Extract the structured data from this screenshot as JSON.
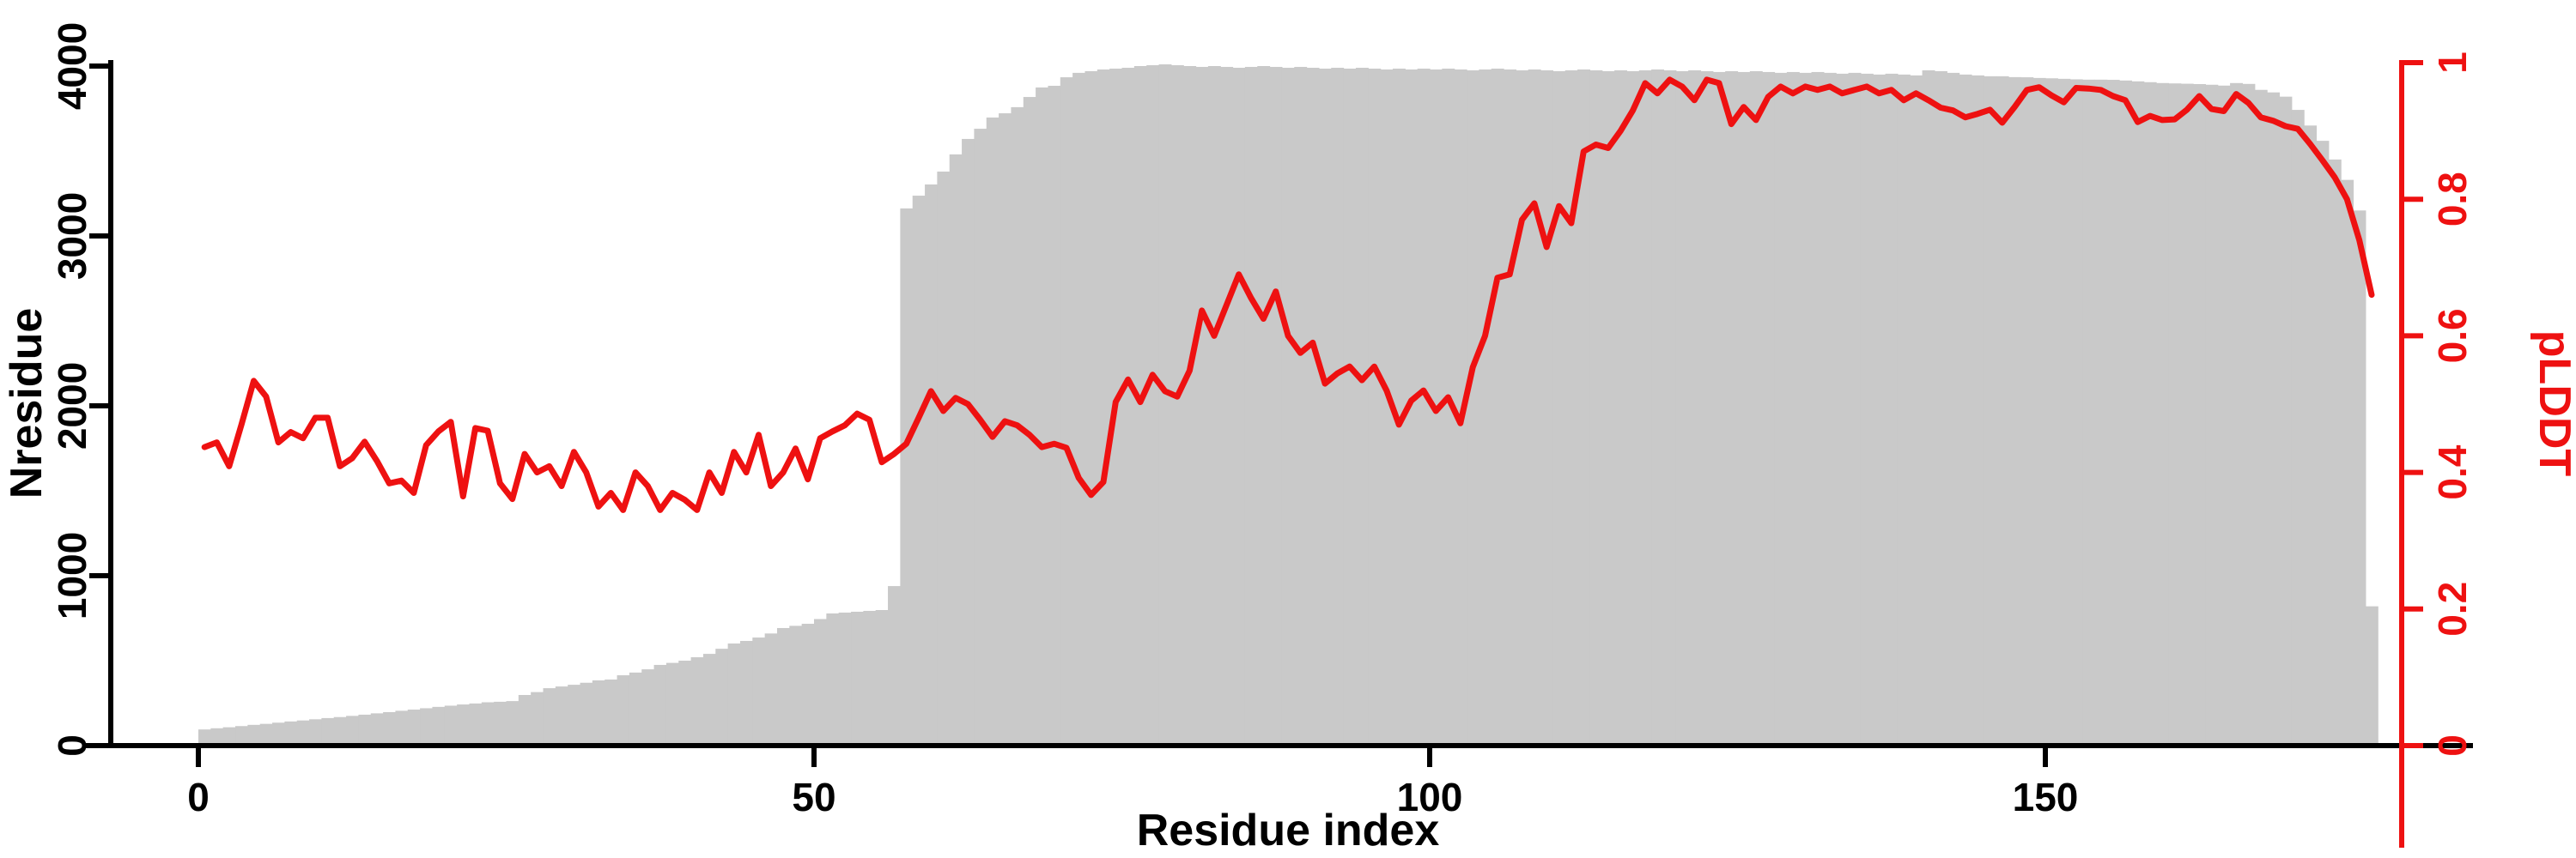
{
  "figure": {
    "background": "#ffffff",
    "axis_color": "#000000",
    "accent_color": "#ee1111",
    "bar_color": "#c9c9c9"
  },
  "chart_data": {
    "type": "bar",
    "subtype": "dual-axis bar + line",
    "title": "",
    "xlabel": "Residue index",
    "ylabel_left": "Nresidue",
    "ylabel_right": "pLDDT",
    "grid": false,
    "legend": "none",
    "x_axis": {
      "tick_labels": [
        "0",
        "50",
        "100",
        "150"
      ],
      "tick_values": [
        0,
        50,
        100,
        150
      ],
      "range_shown": [
        0,
        176
      ]
    },
    "left_axis": {
      "label": "Nresidue",
      "tick_labels": [
        "0",
        "1000",
        "2000",
        "3000",
        "4000"
      ],
      "tick_values": [
        0,
        1000,
        2000,
        3000,
        4000
      ],
      "range": [
        0,
        4000
      ]
    },
    "right_axis": {
      "label": "pLDDT",
      "tick_labels": [
        "0",
        "0.2",
        "0.4",
        "0.6",
        "0.8",
        "1"
      ],
      "tick_values": [
        0,
        0.2,
        0.4,
        0.6,
        0.8,
        1
      ],
      "range": [
        0,
        1
      ]
    },
    "x_start": 0,
    "x_step": 1,
    "series": [
      {
        "name": "Nresidue",
        "type": "bar",
        "color": "#c9c9c9",
        "values": [
          95,
          102,
          108,
          115,
          122,
          128,
          135,
          142,
          148,
          155,
          162,
          168,
          175,
          182,
          190,
          197,
          205,
          212,
          220,
          228,
          235,
          242,
          248,
          255,
          258,
          262,
          298,
          315,
          338,
          348,
          358,
          370,
          384,
          389,
          414,
          430,
          449,
          475,
          487,
          500,
          520,
          540,
          570,
          601,
          616,
          636,
          660,
          692,
          705,
          717,
          745,
          778,
          783,
          788,
          793,
          798,
          939,
          3162,
          3237,
          3303,
          3379,
          3480,
          3571,
          3631,
          3697,
          3722,
          3758,
          3818,
          3874,
          3884,
          3934,
          3960,
          3970,
          3980,
          3985,
          3990,
          4000,
          4005,
          4010,
          4005,
          4000,
          3995,
          4000,
          3995,
          3990,
          3995,
          4000,
          3995,
          3990,
          3995,
          3990,
          3985,
          3990,
          3985,
          3990,
          3985,
          3980,
          3985,
          3980,
          3985,
          3980,
          3985,
          3980,
          3975,
          3980,
          3985,
          3980,
          3975,
          3980,
          3975,
          3970,
          3975,
          3980,
          3975,
          3970,
          3975,
          3970,
          3975,
          3980,
          3975,
          3970,
          3975,
          3970,
          3965,
          3970,
          3965,
          3970,
          3965,
          3960,
          3965,
          3960,
          3965,
          3960,
          3955,
          3960,
          3955,
          3950,
          3955,
          3950,
          3945,
          3975,
          3970,
          3960,
          3950,
          3945,
          3940,
          3940,
          3935,
          3934,
          3930,
          3928,
          3925,
          3922,
          3920,
          3920,
          3919,
          3915,
          3910,
          3905,
          3900,
          3898,
          3896,
          3894,
          3890,
          3885,
          3900,
          3895,
          3860,
          3845,
          3820,
          3742,
          3650,
          3560,
          3450,
          3330,
          3150,
          820
        ]
      },
      {
        "name": "pLDDT",
        "type": "line",
        "color": "#ee1111",
        "values": [
          0.437,
          0.444,
          0.409,
          0.47,
          0.534,
          0.511,
          0.444,
          0.459,
          0.45,
          0.48,
          0.48,
          0.409,
          0.421,
          0.445,
          0.417,
          0.384,
          0.388,
          0.37,
          0.44,
          0.46,
          0.474,
          0.365,
          0.465,
          0.461,
          0.384,
          0.361,
          0.427,
          0.4,
          0.409,
          0.38,
          0.43,
          0.4,
          0.35,
          0.37,
          0.345,
          0.4,
          0.38,
          0.345,
          0.37,
          0.36,
          0.345,
          0.4,
          0.37,
          0.43,
          0.4,
          0.455,
          0.38,
          0.4,
          0.435,
          0.39,
          0.45,
          0.46,
          0.469,
          0.486,
          0.477,
          0.415,
          0.427,
          0.442,
          0.48,
          0.519,
          0.49,
          0.509,
          0.5,
          0.477,
          0.452,
          0.475,
          0.469,
          0.455,
          0.437,
          0.442,
          0.436,
          0.392,
          0.367,
          0.386,
          0.503,
          0.536,
          0.503,
          0.543,
          0.519,
          0.511,
          0.549,
          0.637,
          0.6,
          0.645,
          0.69,
          0.655,
          0.625,
          0.665,
          0.6,
          0.575,
          0.59,
          0.53,
          0.545,
          0.555,
          0.535,
          0.555,
          0.52,
          0.47,
          0.505,
          0.52,
          0.49,
          0.51,
          0.472,
          0.554,
          0.6,
          0.685,
          0.69,
          0.77,
          0.794,
          0.73,
          0.79,
          0.765,
          0.87,
          0.88,
          0.875,
          0.9,
          0.93,
          0.97,
          0.955,
          0.975,
          0.965,
          0.945,
          0.975,
          0.97,
          0.91,
          0.935,
          0.916,
          0.95,
          0.965,
          0.955,
          0.965,
          0.96,
          0.965,
          0.955,
          0.96,
          0.965,
          0.955,
          0.96,
          0.945,
          0.955,
          0.945,
          0.934,
          0.93,
          0.92,
          0.925,
          0.931,
          0.912,
          0.935,
          0.96,
          0.964,
          0.952,
          0.942,
          0.963,
          0.962,
          0.96,
          0.951,
          0.945,
          0.913,
          0.922,
          0.916,
          0.917,
          0.931,
          0.951,
          0.932,
          0.929,
          0.954,
          0.941,
          0.92,
          0.915,
          0.907,
          0.903,
          0.881,
          0.857,
          0.832,
          0.8,
          0.74,
          0.66
        ]
      }
    ]
  }
}
